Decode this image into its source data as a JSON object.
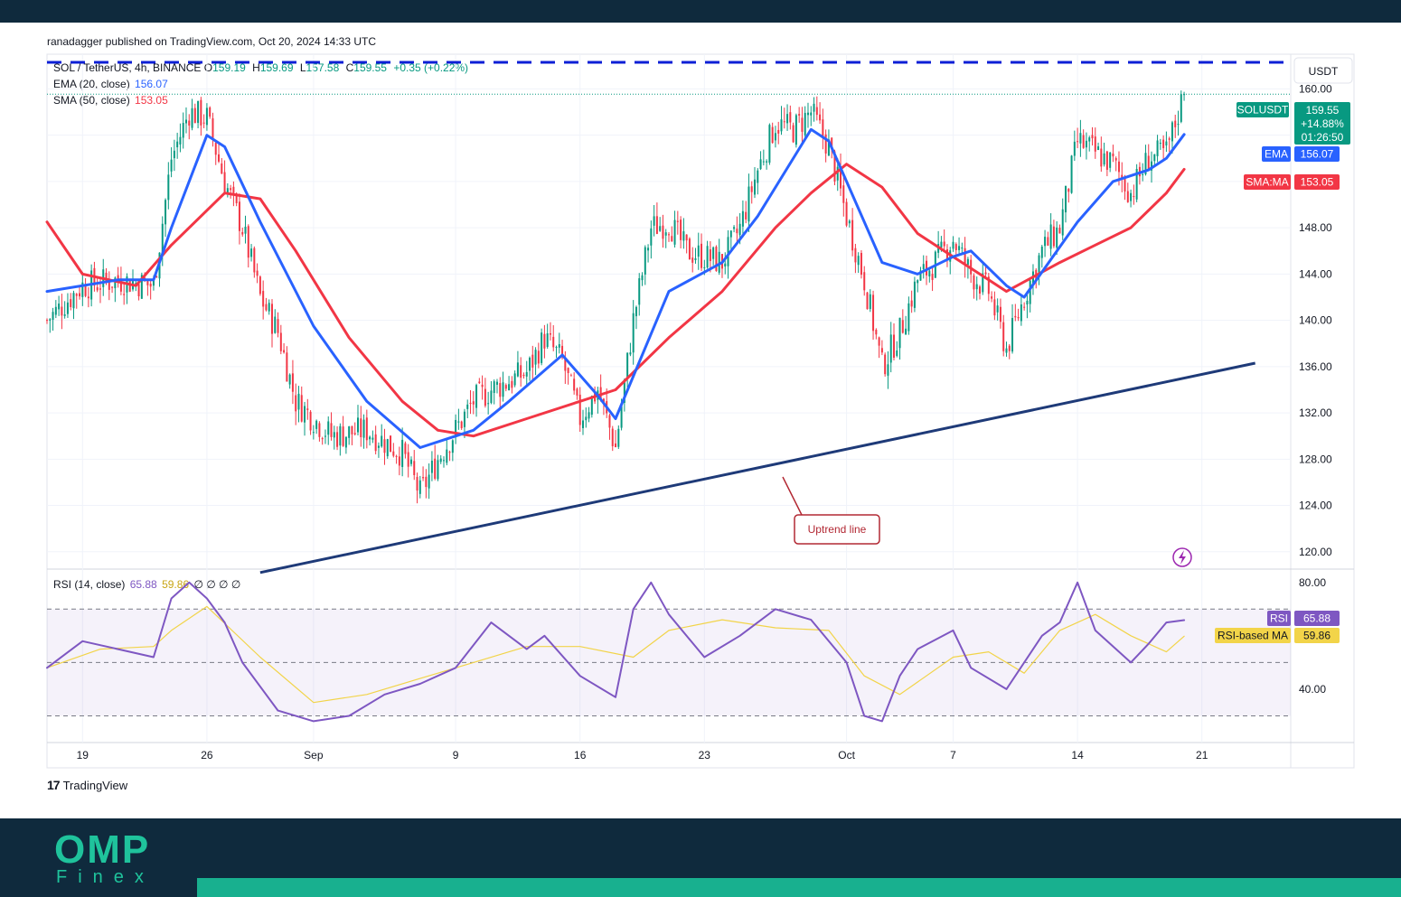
{
  "header": {
    "publisher": "ranadagger published on TradingView.com, Oct 20, 2024 14:33 UTC"
  },
  "legend": {
    "symbol": "SOL / TetherUS, 4h, BINANCE",
    "open_label": "O",
    "open": "159.19",
    "high_label": "H",
    "high": "159.69",
    "low_label": "L",
    "low": "157.58",
    "close_label": "C",
    "close": "159.55",
    "change": "+0.35 (+0.22%)",
    "ema_label": "EMA (20, close)",
    "ema_value": "156.07",
    "sma_label": "SMA (50, close)",
    "sma_value": "153.05",
    "rsi_label": "RSI (14, close)",
    "rsi_value": "65.88",
    "rsi_ma_value": "59.86",
    "rsi_extra": "∅ ∅ ∅ ∅"
  },
  "price_scale": {
    "currency": "USDT",
    "ticks": [
      "120.00",
      "124.00",
      "128.00",
      "132.00",
      "136.00",
      "140.00",
      "144.00",
      "148.00",
      "152.00",
      "156.00",
      "160.00"
    ],
    "symbol_tag": "SOLUSDT",
    "last_price": "159.55",
    "change_pct": "+14.88%",
    "countdown": "01:26:50",
    "ema_tag": "EMA",
    "ema_value": "156.07",
    "sma_tag": "SMA:MA",
    "sma_value": "153.05"
  },
  "rsi_scale": {
    "ticks": [
      "40.00",
      "80.00"
    ],
    "rsi_tag": "RSI",
    "rsi_value": "65.88",
    "ma_tag": "RSI-based MA",
    "ma_value": "59.86"
  },
  "time_axis": {
    "ticks": [
      "19",
      "26",
      "Sep",
      "9",
      "16",
      "23",
      "Oct",
      "7",
      "14",
      "21"
    ]
  },
  "annotations": {
    "uptrend_label": "Uptrend line"
  },
  "footer": {
    "tradingview": "TradingView",
    "brand_name": "OMP",
    "brand_sub": "Finex"
  },
  "colors": {
    "candle_up": "#089981",
    "candle_down": "#f23645",
    "ema": "#2962ff",
    "sma": "#f23645",
    "rsi": "#7e57c2",
    "rsi_ma": "#f2d449",
    "trendline": "#1e3a78",
    "resistance": "#0d1fd6",
    "brand": "#1fc39c"
  },
  "chart_data": [
    {
      "type": "candlestick",
      "title": "SOL / TetherUS, 4h, BINANCE",
      "x_range": [
        "2024-08-17",
        "2024-10-26"
      ],
      "y_range": [
        118.5,
        163.0
      ],
      "ylabel": "USDT",
      "last_close": 159.55,
      "horizontal_line": {
        "value": 162.3,
        "style": "dashed"
      },
      "trendline": {
        "from": [
          "2024-08-29",
          118.2
        ],
        "to": [
          "2024-10-24",
          136.3
        ],
        "label": "Uptrend line"
      },
      "close_path": [
        [
          "2024-08-17",
          140.0
        ],
        [
          "2024-08-19",
          143.0
        ],
        [
          "2024-08-21",
          143.5
        ],
        [
          "2024-08-23",
          143.0
        ],
        [
          "2024-08-24",
          154.0
        ],
        [
          "2024-08-25",
          158.0
        ],
        [
          "2024-08-26",
          157.5
        ],
        [
          "2024-08-27",
          152.0
        ],
        [
          "2024-08-28",
          148.0
        ],
        [
          "2024-08-29",
          142.0
        ],
        [
          "2024-08-30",
          139.0
        ],
        [
          "2024-08-31",
          133.0
        ],
        [
          "2024-09-02",
          130.0
        ],
        [
          "2024-09-04",
          130.5
        ],
        [
          "2024-09-06",
          128.5
        ],
        [
          "2024-09-07",
          125.0
        ],
        [
          "2024-09-08",
          128.0
        ],
        [
          "2024-09-10",
          133.0
        ],
        [
          "2024-09-11",
          134.0
        ],
        [
          "2024-09-13",
          135.5
        ],
        [
          "2024-09-14",
          138.5
        ],
        [
          "2024-09-15",
          136.5
        ],
        [
          "2024-09-16",
          131.5
        ],
        [
          "2024-09-17",
          134.0
        ],
        [
          "2024-09-18",
          129.0
        ],
        [
          "2024-09-19",
          140.0
        ],
        [
          "2024-09-20",
          148.0
        ],
        [
          "2024-09-21",
          148.5
        ],
        [
          "2024-09-22",
          146.0
        ],
        [
          "2024-09-24",
          145.0
        ],
        [
          "2024-09-25",
          148.0
        ],
        [
          "2024-09-26",
          153.0
        ],
        [
          "2024-09-27",
          157.0
        ],
        [
          "2024-09-28",
          156.5
        ],
        [
          "2024-09-29",
          158.0
        ],
        [
          "2024-09-30",
          155.0
        ],
        [
          "2024-10-01",
          149.0
        ],
        [
          "2024-10-02",
          143.5
        ],
        [
          "2024-10-03",
          136.0
        ],
        [
          "2024-10-04",
          139.0
        ],
        [
          "2024-10-05",
          143.5
        ],
        [
          "2024-10-06",
          145.0
        ],
        [
          "2024-10-07",
          147.0
        ],
        [
          "2024-10-08",
          144.0
        ],
        [
          "2024-10-09",
          142.5
        ],
        [
          "2024-10-10",
          137.5
        ],
        [
          "2024-10-11",
          142.0
        ],
        [
          "2024-10-12",
          146.0
        ],
        [
          "2024-10-13",
          148.0
        ],
        [
          "2024-10-14",
          155.5
        ],
        [
          "2024-10-15",
          154.5
        ],
        [
          "2024-10-16",
          153.5
        ],
        [
          "2024-10-17",
          151.0
        ],
        [
          "2024-10-18",
          154.0
        ],
        [
          "2024-10-19",
          154.5
        ],
        [
          "2024-10-20",
          159.55
        ]
      ]
    },
    {
      "type": "line",
      "name": "EMA (20, close)",
      "x": [
        "2024-08-17",
        "2024-08-21",
        "2024-08-23",
        "2024-08-24",
        "2024-08-26",
        "2024-08-27",
        "2024-08-29",
        "2024-09-01",
        "2024-09-04",
        "2024-09-07",
        "2024-09-10",
        "2024-09-12",
        "2024-09-15",
        "2024-09-17",
        "2024-09-18",
        "2024-09-21",
        "2024-09-24",
        "2024-09-26",
        "2024-09-29",
        "2024-09-30",
        "2024-10-01",
        "2024-10-03",
        "2024-10-05",
        "2024-10-07",
        "2024-10-08",
        "2024-10-10",
        "2024-10-11",
        "2024-10-14",
        "2024-10-16",
        "2024-10-18",
        "2024-10-19",
        "2024-10-20"
      ],
      "y": [
        142.5,
        143.5,
        143.5,
        148.0,
        156.0,
        155.0,
        148.5,
        139.5,
        133.0,
        129.0,
        130.5,
        133.0,
        137.0,
        133.5,
        131.5,
        142.5,
        145.0,
        149.0,
        156.5,
        155.5,
        152.0,
        145.0,
        144.0,
        145.5,
        146.0,
        143.0,
        142.0,
        148.5,
        152.0,
        153.0,
        154.0,
        156.07
      ]
    },
    {
      "type": "line",
      "name": "SMA (50, close)",
      "x": [
        "2024-08-17",
        "2024-08-19",
        "2024-08-22",
        "2024-08-24",
        "2024-08-27",
        "2024-08-29",
        "2024-08-31",
        "2024-09-03",
        "2024-09-06",
        "2024-09-08",
        "2024-09-10",
        "2024-09-13",
        "2024-09-16",
        "2024-09-18",
        "2024-09-21",
        "2024-09-24",
        "2024-09-27",
        "2024-09-29",
        "2024-10-01",
        "2024-10-03",
        "2024-10-05",
        "2024-10-07",
        "2024-10-09",
        "2024-10-10",
        "2024-10-13",
        "2024-10-15",
        "2024-10-17",
        "2024-10-19",
        "2024-10-20"
      ],
      "y": [
        148.5,
        144.0,
        143.0,
        146.5,
        151.0,
        150.5,
        146.0,
        138.5,
        133.0,
        130.5,
        130.0,
        131.5,
        133.0,
        134.0,
        138.5,
        142.5,
        148.0,
        151.0,
        153.5,
        151.5,
        147.5,
        145.5,
        143.5,
        142.5,
        145.0,
        146.5,
        148.0,
        151.0,
        153.05
      ]
    },
    {
      "type": "line",
      "name": "RSI (14, close)",
      "y_range": [
        20,
        85
      ],
      "levels": [
        70,
        50,
        30
      ],
      "x": [
        "2024-08-17",
        "2024-08-19",
        "2024-08-21",
        "2024-08-23",
        "2024-08-24",
        "2024-08-25",
        "2024-08-26",
        "2024-08-27",
        "2024-08-28",
        "2024-08-30",
        "2024-09-01",
        "2024-09-03",
        "2024-09-05",
        "2024-09-07",
        "2024-09-09",
        "2024-09-11",
        "2024-09-13",
        "2024-09-14",
        "2024-09-16",
        "2024-09-18",
        "2024-09-19",
        "2024-09-20",
        "2024-09-21",
        "2024-09-23",
        "2024-09-25",
        "2024-09-27",
        "2024-09-29",
        "2024-10-01",
        "2024-10-02",
        "2024-10-03",
        "2024-10-04",
        "2024-10-05",
        "2024-10-07",
        "2024-10-08",
        "2024-10-10",
        "2024-10-12",
        "2024-10-13",
        "2024-10-14",
        "2024-10-15",
        "2024-10-17",
        "2024-10-18",
        "2024-10-19",
        "2024-10-20"
      ],
      "y": [
        48,
        58,
        55,
        52,
        74,
        80,
        74,
        65,
        50,
        32,
        28,
        30,
        38,
        42,
        48,
        65,
        55,
        60,
        45,
        37,
        70,
        80,
        68,
        52,
        60,
        70,
        66,
        50,
        30,
        28,
        45,
        55,
        62,
        48,
        40,
        60,
        65,
        80,
        62,
        50,
        57,
        65,
        65.88
      ]
    },
    {
      "type": "line",
      "name": "RSI-based MA",
      "x": [
        "2024-08-17",
        "2024-08-20",
        "2024-08-23",
        "2024-08-24",
        "2024-08-26",
        "2024-08-29",
        "2024-09-01",
        "2024-09-04",
        "2024-09-07",
        "2024-09-10",
        "2024-09-13",
        "2024-09-16",
        "2024-09-19",
        "2024-09-21",
        "2024-09-24",
        "2024-09-27",
        "2024-09-30",
        "2024-10-02",
        "2024-10-04",
        "2024-10-07",
        "2024-10-09",
        "2024-10-11",
        "2024-10-13",
        "2024-10-15",
        "2024-10-17",
        "2024-10-19",
        "2024-10-20"
      ],
      "y": [
        48,
        55,
        56,
        62,
        71,
        52,
        35,
        38,
        44,
        50,
        56,
        56,
        52,
        62,
        66,
        63,
        62,
        45,
        38,
        52,
        54,
        46,
        62,
        68,
        60,
        54,
        59.86
      ]
    }
  ]
}
